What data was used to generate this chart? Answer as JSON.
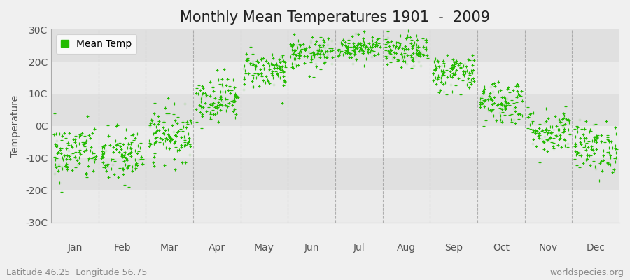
{
  "title": "Monthly Mean Temperatures 1901  -  2009",
  "ylabel": "Temperature",
  "yticks": [
    -30,
    -20,
    -10,
    0,
    10,
    20,
    30
  ],
  "ytick_labels": [
    "-30C",
    "-20C",
    "-10C",
    "0C",
    "10C",
    "20C",
    "30C"
  ],
  "ylim": [
    -30,
    30
  ],
  "months": [
    "Jan",
    "Feb",
    "Mar",
    "Apr",
    "May",
    "Jun",
    "Jul",
    "Aug",
    "Sep",
    "Oct",
    "Nov",
    "Dec"
  ],
  "month_means": [
    -8.5,
    -9.5,
    -2.5,
    8.5,
    17.5,
    22.5,
    24.5,
    23.0,
    16.5,
    7.5,
    -1.5,
    -6.5
  ],
  "month_stds": [
    4.5,
    4.5,
    4.0,
    3.5,
    3.0,
    2.5,
    2.0,
    2.5,
    3.0,
    3.5,
    3.5,
    4.0
  ],
  "n_years": 109,
  "dot_color": "#22bb00",
  "dot_size": 6,
  "background_color": "#f0f0f0",
  "plot_bg_light": "#f0f0f0",
  "plot_bg_dark": "#e0e0e0",
  "grid_color": "#888888",
  "legend_label": "Mean Temp",
  "footer_left": "Latitude 46.25  Longitude 56.75",
  "footer_right": "worldspecies.org",
  "title_fontsize": 15,
  "axis_fontsize": 10,
  "footer_fontsize": 9,
  "band_colors": [
    "#ebebeb",
    "#e0e0e0",
    "#ebebeb",
    "#e0e0e0",
    "#ebebeb",
    "#e0e0e0",
    "#ebebeb"
  ]
}
